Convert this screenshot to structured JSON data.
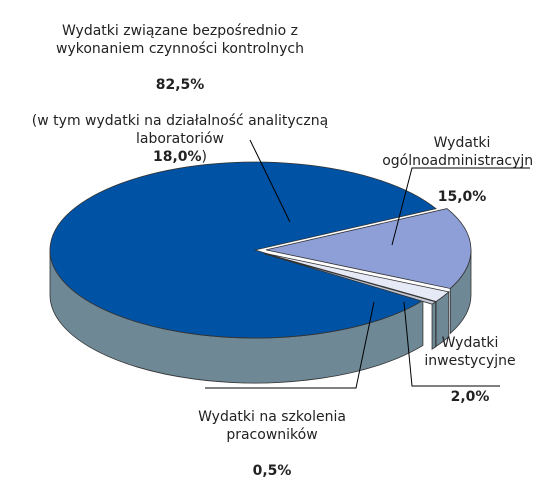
{
  "chart_data": {
    "type": "pie",
    "categories": [
      "Wydatki związane bezpośrednio z\nwykonaniem czynności kontrolnych",
      "Wydatki\nogólnoadministracyjne",
      "Wydatki\ninwestycyjne",
      "Wydatki na szkolenia\npracowników"
    ],
    "values": [
      82.5,
      15.0,
      2.0,
      0.5
    ],
    "value_labels": [
      "82,5%",
      "15,0%",
      "2,0%",
      "0,5%"
    ],
    "colors": [
      "#0052a5",
      "#8e9fd8",
      "#e6eaf6",
      "#c3c8d6"
    ],
    "explode": [
      false,
      true,
      true,
      true
    ],
    "note": {
      "text": "(w tym wydatki na działalność analityczną\nlaboratoriów",
      "value_label": "18,0%",
      "close": ")"
    }
  }
}
